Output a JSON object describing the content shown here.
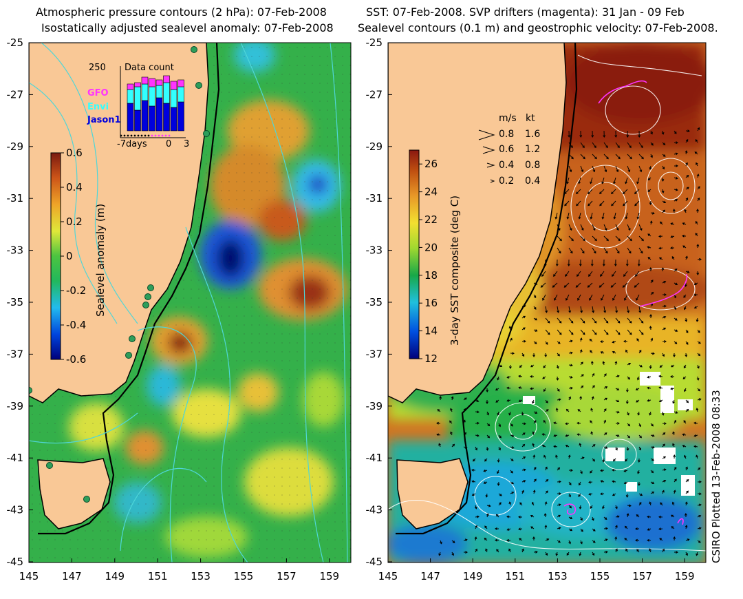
{
  "left_panel": {
    "title_line1": "Atmospheric pressure contours (2 hPa): 07-Feb-2008",
    "title_line2": "Isostatically adjusted sealevel anomaly: 07-Feb-2008",
    "colorbar": {
      "label": "Sealevel anomaly (m)",
      "ticks": [
        "0.6",
        "0.4",
        "0.2",
        "0",
        "-0.2",
        "-0.4",
        "-0.6"
      ],
      "range": [
        -0.6,
        0.6
      ]
    },
    "inset": {
      "title": "Data count",
      "max_label": "250",
      "x_labels": [
        "-7days",
        "0",
        "3"
      ],
      "legend": [
        {
          "name": "GFO",
          "color": "#ff33ff"
        },
        {
          "name": "Envi",
          "color": "#33ffff"
        },
        {
          "name": "Jason1",
          "color": "#0000dd"
        }
      ]
    }
  },
  "right_panel": {
    "title_line1": "SST: 07-Feb-2008. SVP drifters (magenta): 31 Jan - 09 Feb",
    "title_line2": "Sealevel contours (0.1 m) and geostrophic velocity: 07-Feb-2008.",
    "colorbar": {
      "label": "3-day SST composite (deg C)",
      "ticks": [
        "26",
        "24",
        "22",
        "20",
        "18",
        "16",
        "14",
        "12"
      ],
      "range": [
        12,
        27
      ]
    },
    "velocity_key": {
      "header_ms": "m/s",
      "header_kt": "kt",
      "rows": [
        {
          "ms": "0.8",
          "kt": "1.6"
        },
        {
          "ms": "0.6",
          "kt": "1.2"
        },
        {
          "ms": "0.4",
          "kt": "0.8"
        },
        {
          "ms": "0.2",
          "kt": "0.4"
        }
      ]
    }
  },
  "axes": {
    "lat_labels": [
      "-25",
      "-27",
      "-29",
      "-31",
      "-33",
      "-35",
      "-37",
      "-39",
      "-41",
      "-43",
      "-45"
    ],
    "lon_labels": [
      "145",
      "147",
      "149",
      "151",
      "153",
      "155",
      "157",
      "159"
    ]
  },
  "credit": "CSIRO Plotted 13-Feb-2008 08:33",
  "colors": {
    "land": "#f9c896",
    "coast": "#000000",
    "pressure_contour": "#4fd6d8",
    "sst_contour": "#ffffff"
  }
}
